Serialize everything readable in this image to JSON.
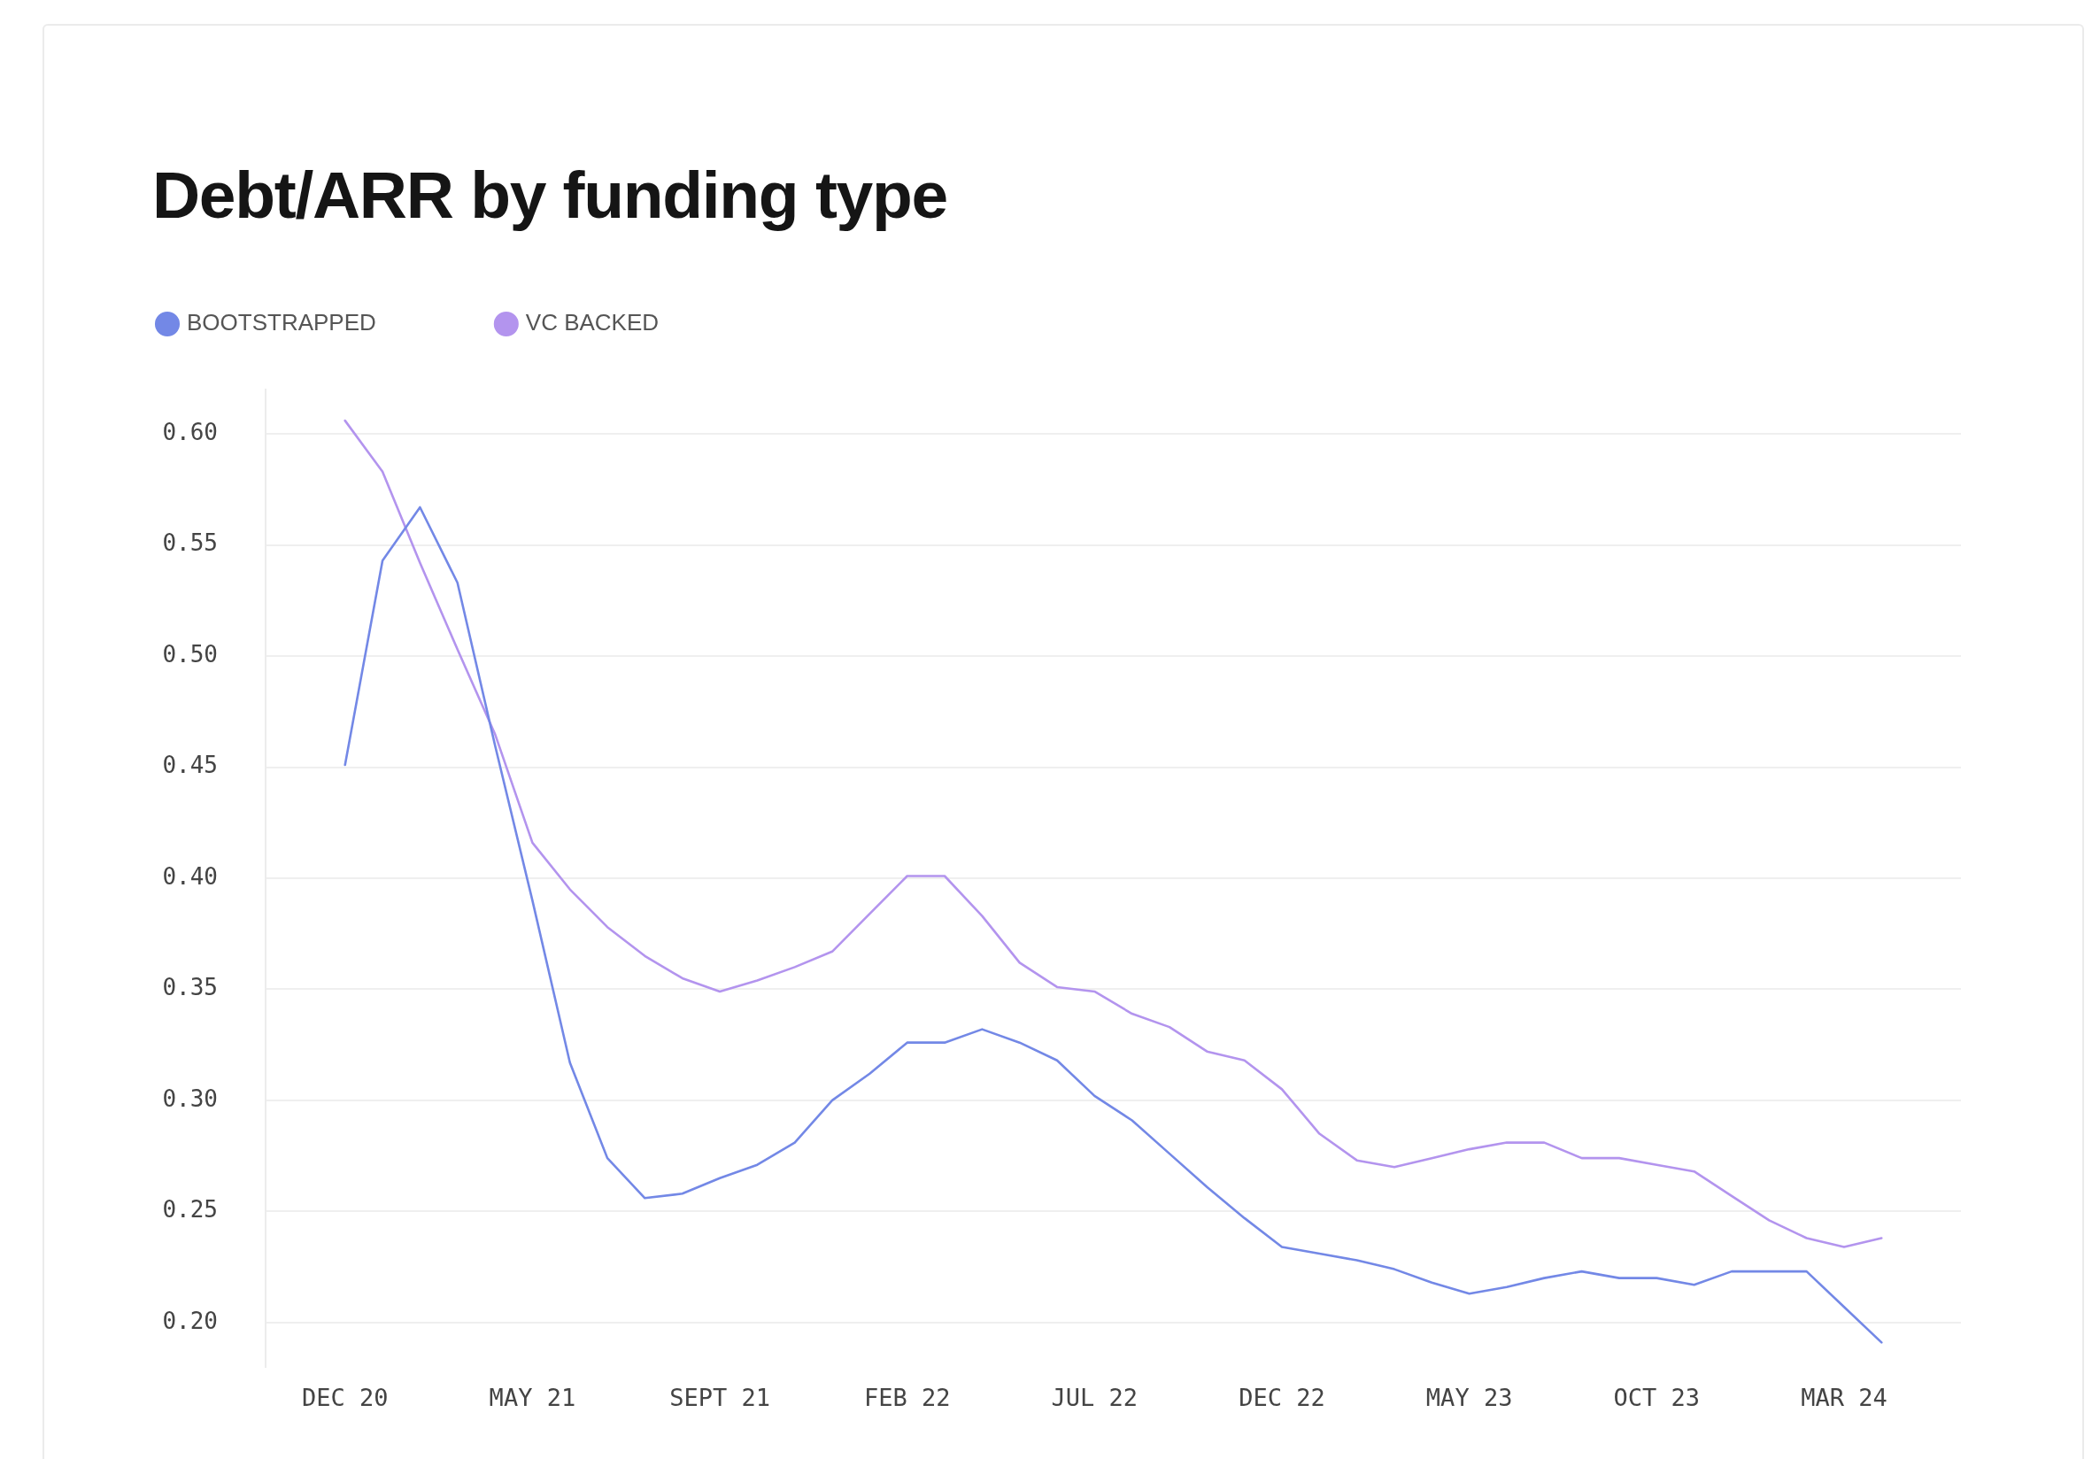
{
  "chart_data": {
    "type": "line",
    "title": "Debt/ARR by funding type",
    "categories": [
      "DEC 20",
      null,
      null,
      null,
      null,
      "MAY 21",
      null,
      null,
      null,
      null,
      "SEPT 21",
      null,
      null,
      null,
      null,
      "FEB 22",
      null,
      null,
      null,
      null,
      "JUL 22",
      null,
      null,
      null,
      null,
      "DEC 22",
      null,
      null,
      null,
      null,
      "MAY 23",
      null,
      null,
      null,
      null,
      "OCT 23",
      null,
      null,
      null,
      null,
      "MAR 24",
      null
    ],
    "series": [
      {
        "name": "BOOTSTRAPPED",
        "color": "#7388e6",
        "values": [
          0.451,
          0.543,
          0.567,
          0.533,
          0.46,
          0.39,
          0.317,
          0.274,
          0.256,
          0.258,
          0.265,
          0.271,
          0.281,
          0.3,
          0.312,
          0.326,
          0.326,
          0.332,
          0.326,
          0.318,
          0.302,
          0.291,
          0.276,
          0.261,
          0.247,
          0.234,
          0.231,
          0.228,
          0.224,
          0.218,
          0.213,
          0.216,
          0.22,
          0.223,
          0.22,
          0.22,
          0.217,
          0.223,
          0.223,
          0.223,
          0.207,
          0.191
        ]
      },
      {
        "name": "VC BACKED",
        "color": "#b394ee",
        "values": [
          0.606,
          0.583,
          0.542,
          0.503,
          0.465,
          0.416,
          0.395,
          0.378,
          0.365,
          0.355,
          0.349,
          0.354,
          0.36,
          0.367,
          0.384,
          0.401,
          0.401,
          0.383,
          0.362,
          0.351,
          0.349,
          0.339,
          0.333,
          0.322,
          0.318,
          0.305,
          0.285,
          0.273,
          0.27,
          0.274,
          0.278,
          0.281,
          0.281,
          0.274,
          0.274,
          0.271,
          0.268,
          0.257,
          0.246,
          0.238,
          0.234,
          0.238
        ]
      }
    ],
    "ylim": [
      0.18,
      0.62
    ],
    "yticks": [
      {
        "value": 0.2,
        "label": "0.20"
      },
      {
        "value": 0.25,
        "label": "0.25"
      },
      {
        "value": 0.3,
        "label": "0.30"
      },
      {
        "value": 0.35,
        "label": "0.35"
      },
      {
        "value": 0.4,
        "label": "0.40"
      },
      {
        "value": 0.45,
        "label": "0.45"
      },
      {
        "value": 0.5,
        "label": "0.50"
      },
      {
        "value": 0.55,
        "label": "0.55"
      },
      {
        "value": 0.6,
        "label": "0.60"
      }
    ],
    "grid": "y",
    "legend": "top left",
    "marker": "none",
    "line_style": "solid"
  }
}
